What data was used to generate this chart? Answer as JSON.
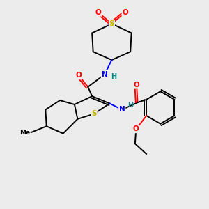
{
  "bg_color": "#ececec",
  "atom_colors": {
    "S": "#c8b400",
    "O": "#ff0000",
    "N": "#0000ff",
    "H": "#008888",
    "C": "#000000"
  },
  "lw": 1.4
}
